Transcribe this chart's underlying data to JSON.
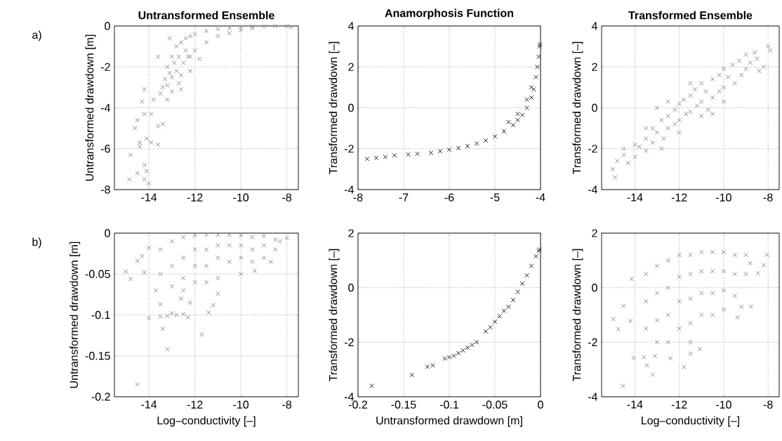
{
  "chart_data": [
    {
      "type": "scatter",
      "title": "Untransformed Ensemble",
      "ylabel": "Untransformed drawdown [m]",
      "annotations": [
        "a)"
      ],
      "color": "#8c8c8c",
      "marker": "cross",
      "grid": true,
      "xlim": [
        -15.5,
        -7.5
      ],
      "ylim": [
        -8,
        0
      ],
      "xticks": [
        -14,
        -12,
        -10,
        -8
      ],
      "yticks": [
        -8,
        -6,
        -4,
        -2,
        0
      ],
      "x": [
        -14.85,
        -14.8,
        -14.5,
        -14.2,
        -14.0,
        -14.1,
        -14.2,
        -14.4,
        -14.4,
        -14.1,
        -13.9,
        -13.6,
        -14.6,
        -14.5,
        -14.2,
        -13.9,
        -13.6,
        -13.4,
        -14.3,
        -14.2,
        -13.8,
        -13.5,
        -13.2,
        -13.0,
        -12.6,
        -13.1,
        -12.3,
        -13.6,
        -13.3,
        -13.2,
        -13.0,
        -12.8,
        -12.6,
        -12.4,
        -12.2,
        -12.0,
        -11.5,
        -11.0,
        -10.5,
        -10.0,
        -9.5,
        -9.0,
        -8.5,
        -8.0,
        -7.8,
        -13.0,
        -12.8,
        -12.5,
        -12.2,
        -12.0,
        -11.5,
        -11.0,
        -10.5,
        -10.0,
        -9.5,
        -12.7,
        -12.4,
        -13.1,
        -12.9,
        -12.6,
        -12.2,
        -11.8,
        -12.7,
        -13.2,
        -13.4
      ],
      "values": [
        -7.5,
        -6.3,
        -7.2,
        -7.5,
        -7.7,
        -7.1,
        -6.8,
        -5.9,
        -5.7,
        -5.5,
        -5.7,
        -5.8,
        -5.0,
        -4.6,
        -4.3,
        -4.3,
        -4.9,
        -4.8,
        -3.7,
        -3.1,
        -3.6,
        -3.3,
        -3.6,
        -3.2,
        -3.1,
        -0.6,
        -1.5,
        -1.5,
        -2.6,
        -2.0,
        -1.5,
        -1.0,
        -0.8,
        -0.6,
        -0.5,
        -0.4,
        -0.25,
        -0.15,
        -0.1,
        -0.05,
        -0.03,
        -0.02,
        -0.01,
        0,
        -0.05,
        -2.5,
        -2.2,
        -1.8,
        -1.5,
        -1.2,
        -0.8,
        -0.5,
        -0.35,
        -0.2,
        -0.12,
        -1.5,
        -1.2,
        -2.3,
        -1.8,
        -2.4,
        -2.2,
        -1.6,
        -2.8,
        -2.9,
        -3.0
      ]
    },
    {
      "type": "scatter",
      "title": "Anamorphosis Function",
      "ylabel": "Transformed drawdown [–]",
      "color": "#231f20",
      "marker": "cross",
      "grid": true,
      "xlim": [
        -8,
        -4
      ],
      "ylim": [
        -4,
        4
      ],
      "xticks": [
        -8,
        -7,
        -6,
        -5,
        -4
      ],
      "yticks": [
        -4,
        -2,
        0,
        2,
        4
      ],
      "x": [
        -7.8,
        -7.6,
        -7.4,
        -7.2,
        -6.9,
        -6.7,
        -6.4,
        -6.2,
        -6.0,
        -5.8,
        -5.6,
        -5.4,
        -5.2,
        -5.0,
        -4.8,
        -4.6,
        -4.5,
        -4.4,
        -4.3,
        -4.2,
        -4.15,
        -4.1,
        -4.07,
        -4.04,
        -4.02,
        -4.01,
        -4.7,
        -4.5,
        -4.3,
        -4.2
      ],
      "values": [
        -2.5,
        -2.45,
        -2.4,
        -2.33,
        -2.28,
        -2.25,
        -2.2,
        -2.12,
        -2.05,
        -1.97,
        -1.87,
        -1.75,
        -1.6,
        -1.4,
        -1.15,
        -0.85,
        -0.6,
        -0.35,
        0,
        0.5,
        0.9,
        1.5,
        2,
        2.5,
        3.0,
        3.1,
        -0.7,
        -0.3,
        0.4,
        1.0
      ]
    },
    {
      "type": "scatter",
      "title": "Transformed Ensemble",
      "ylabel": "Transformed drawdown [–]",
      "color": "#8c8c8c",
      "marker": "cross",
      "grid": true,
      "xlim": [
        -15.5,
        -7.5
      ],
      "ylim": [
        -4,
        4
      ],
      "xticks": [
        -14,
        -12,
        -10,
        -8
      ],
      "yticks": [
        -4,
        -2,
        0,
        2,
        4
      ],
      "x": [
        -15.0,
        -14.9,
        -14.8,
        -14.5,
        -14.3,
        -14.0,
        -14.0,
        -13.8,
        -13.5,
        -13.5,
        -13.2,
        -13.2,
        -13.0,
        -13.0,
        -12.8,
        -12.7,
        -12.5,
        -12.5,
        -12.2,
        -12.2,
        -12.0,
        -12.0,
        -12.0,
        -11.8,
        -11.7,
        -11.5,
        -11.5,
        -11.3,
        -11.2,
        -11.0,
        -11.0,
        -11.0,
        -10.8,
        -10.7,
        -10.5,
        -10.5,
        -10.2,
        -10.2,
        -10.0,
        -10.0,
        -10.0,
        -9.8,
        -9.6,
        -9.5,
        -9.3,
        -9.2,
        -9.0,
        -9.0,
        -8.8,
        -8.6,
        -8.5,
        -8.4,
        -8.2,
        -8.0,
        -7.9,
        -11.5,
        -12.5,
        -13.5,
        -14.5,
        -10.5,
        -12.8
      ],
      "values": [
        -3.0,
        -3.4,
        -2.6,
        -2.3,
        -2.7,
        -1.8,
        -2.4,
        -1.9,
        -1.5,
        -2.1,
        -1.0,
        -1.7,
        0,
        -1.2,
        -0.6,
        -1.5,
        -0.4,
        -1.0,
        -0.1,
        -0.8,
        0.2,
        -0.6,
        -1.2,
        0.4,
        -0.3,
        0.6,
        -0.2,
        0.9,
        0.1,
        1.2,
        0.3,
        -0.4,
        0.8,
        -0.1,
        1.4,
        0.5,
        1.6,
        0.8,
        1.9,
        1.0,
        0.3,
        1.5,
        2.1,
        1.2,
        2.3,
        1.6,
        2.6,
        1.9,
        2.2,
        2.7,
        2.4,
        1.8,
        2.0,
        3.0,
        2.8,
        1.2,
        0.3,
        -1.0,
        -2.0,
        -0.3,
        -2.0
      ]
    },
    {
      "type": "scatter",
      "xlabel": "Log–conductivity [–]",
      "ylabel": "Untransformed drawdown [m]",
      "annotations": [
        "b)"
      ],
      "color": "#8c8c8c",
      "marker": "cross",
      "grid": true,
      "xlim": [
        -15.5,
        -7.5
      ],
      "ylim": [
        -0.2,
        0
      ],
      "xticks": [
        -14,
        -12,
        -10,
        -8
      ],
      "yticks": [
        -0.2,
        -0.15,
        -0.1,
        -0.05,
        0
      ],
      "x": [
        -15.0,
        -14.8,
        -14.5,
        -14.5,
        -14.2,
        -14.0,
        -13.7,
        -13.5,
        -13.5,
        -13.4,
        -13.2,
        -13.2,
        -13.0,
        -12.8,
        -12.5,
        -12.3,
        -11.7,
        -11.4,
        -11.2,
        -11.0,
        -12.2,
        -12.6,
        -14.3,
        -14.0,
        -9.4,
        -8.7,
        -8.3,
        -8.0,
        -13.5,
        -13.5,
        -13.0,
        -13.0,
        -13.0,
        -12.5,
        -12.5,
        -12.5,
        -12.5,
        -12.0,
        -12.0,
        -12.0,
        -12.0,
        -11.5,
        -11.5,
        -11.5,
        -11.5,
        -11.0,
        -11.0,
        -11.0,
        -11.0,
        -10.5,
        -10.5,
        -10.5,
        -10.0,
        -10.0,
        -10.0,
        -10.0,
        -9.5,
        -9.5,
        -9.5,
        -9.0,
        -9.0,
        -9.0,
        -8.5,
        -8.5
      ],
      "values": [
        -0.047,
        -0.056,
        -0.185,
        -0.034,
        -0.048,
        -0.104,
        -0.07,
        -0.087,
        -0.102,
        -0.117,
        -0.142,
        -0.101,
        -0.098,
        -0.1,
        -0.099,
        -0.103,
        -0.124,
        -0.097,
        -0.088,
        -0.074,
        -0.085,
        -0.08,
        -0.028,
        -0.018,
        -0.046,
        -0.035,
        -0.01,
        -0.006,
        -0.02,
        -0.05,
        -0.01,
        -0.04,
        -0.065,
        -0.005,
        -0.03,
        -0.055,
        -0.07,
        -0.003,
        -0.02,
        -0.04,
        -0.06,
        -0.002,
        -0.02,
        -0.04,
        -0.06,
        -0.002,
        -0.015,
        -0.03,
        -0.055,
        -0.002,
        -0.015,
        -0.035,
        -0.003,
        -0.015,
        -0.03,
        -0.05,
        -0.005,
        -0.02,
        -0.035,
        -0.003,
        -0.015,
        -0.03,
        -0.008,
        -0.02
      ]
    },
    {
      "type": "scatter",
      "xlabel": "Untransformed drawdown [m]",
      "ylabel": "Transformed drawdown [–]",
      "color": "#231f20",
      "marker": "cross",
      "grid": true,
      "xlim": [
        -0.2,
        0
      ],
      "ylim": [
        -4,
        2
      ],
      "xticks": [
        -0.2,
        -0.15,
        -0.1,
        -0.05,
        0
      ],
      "yticks": [
        -4,
        -2,
        0,
        2
      ],
      "x": [
        -0.185,
        -0.141,
        -0.124,
        -0.118,
        -0.105,
        -0.1,
        -0.095,
        -0.09,
        -0.085,
        -0.08,
        -0.075,
        -0.07,
        -0.06,
        -0.055,
        -0.05,
        -0.045,
        -0.04,
        -0.035,
        -0.03,
        -0.025,
        -0.02,
        -0.015,
        -0.01,
        -0.005,
        -0.002,
        -0.001
      ],
      "values": [
        -3.6,
        -3.2,
        -2.9,
        -2.85,
        -2.6,
        -2.55,
        -2.5,
        -2.4,
        -2.3,
        -2.2,
        -2.1,
        -2.0,
        -1.6,
        -1.45,
        -1.25,
        -1.05,
        -0.85,
        -0.7,
        -0.45,
        -0.15,
        0.15,
        0.45,
        0.8,
        1.15,
        1.35,
        1.4
      ]
    },
    {
      "type": "scatter",
      "xlabel": "Log–conductivity [–]",
      "ylabel": "Transformed drawdown [–]",
      "color": "#8c8c8c",
      "marker": "cross",
      "grid": true,
      "xlim": [
        -15.5,
        -7.5
      ],
      "ylim": [
        -4,
        2
      ],
      "xticks": [
        -14,
        -12,
        -10,
        -8
      ],
      "yticks": [
        -4,
        -2,
        0,
        2
      ],
      "x": [
        -14.97,
        -14.75,
        -14.54,
        -14.51,
        -14.2,
        -14.05,
        -14.15,
        -13.6,
        -13.46,
        -13.2,
        -11.78,
        -8.77,
        -9.38,
        -8.05,
        -8.2,
        -8.46,
        -11.08,
        -11.49,
        -12.4,
        -13.1,
        -13.5,
        -13.5,
        -13.5,
        -13.0,
        -13.0,
        -13.0,
        -13.0,
        -12.5,
        -12.5,
        -12.5,
        -12.5,
        -12.0,
        -12.0,
        -12.0,
        -12.0,
        -11.5,
        -11.5,
        -11.5,
        -11.5,
        -11.5,
        -11.0,
        -11.0,
        -11.0,
        -11.0,
        -10.5,
        -10.5,
        -10.5,
        -10.5,
        -10.0,
        -10.0,
        -10.0,
        -10.0,
        -9.5,
        -9.5,
        -9.5,
        -9.0,
        -9.0,
        -8.8,
        -9.2
      ],
      "values": [
        -1.15,
        -1.52,
        -3.6,
        -0.67,
        -1.22,
        -2.57,
        0.32,
        -2.55,
        -2.85,
        -3.19,
        -2.91,
        -0.69,
        -1.09,
        1.21,
        0.83,
        0.53,
        -2.25,
        -2.42,
        -2.59,
        -2.5,
        -0.5,
        -1.5,
        0.5,
        0.8,
        -0.2,
        -1.2,
        -2.0,
        1.0,
        0,
        -1.0,
        -2.0,
        1.2,
        0.4,
        -0.5,
        -1.5,
        1.2,
        0.5,
        -0.4,
        -1.3,
        -2.0,
        1.3,
        0.6,
        -0.2,
        -1.0,
        1.3,
        0.6,
        -0.2,
        -1.0,
        1.3,
        0.6,
        -0.1,
        -0.8,
        1.2,
        0.5,
        -0.3,
        1.2,
        0.5,
        0.9,
        -0.7
      ]
    }
  ]
}
